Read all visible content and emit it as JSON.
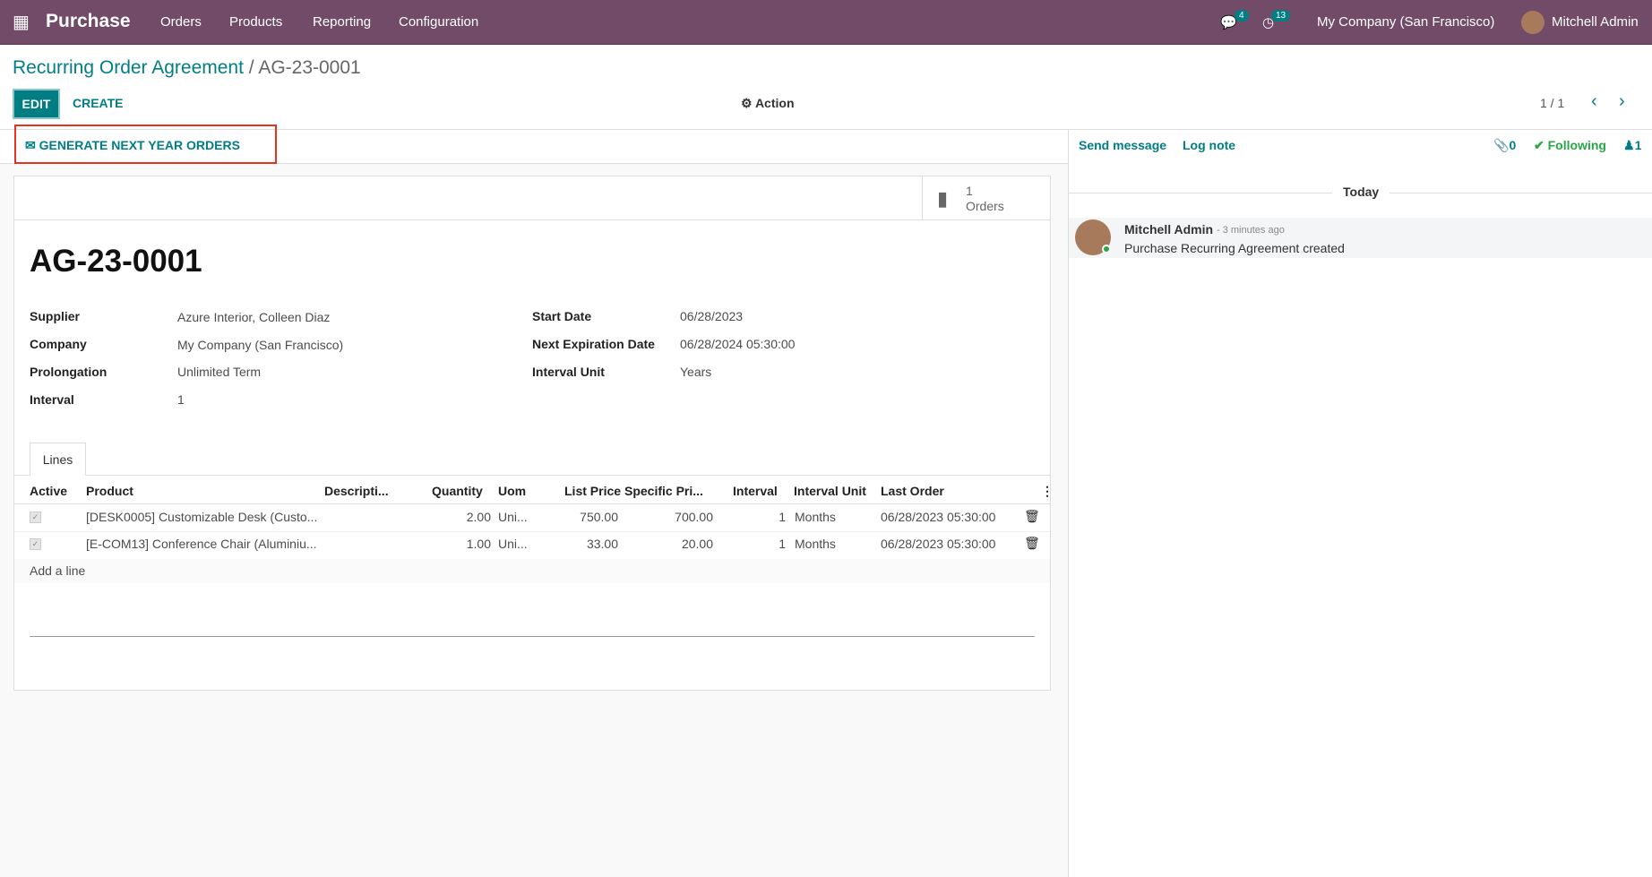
{
  "navbar": {
    "app": "Purchase",
    "menus": [
      "Orders",
      "Products",
      "Reporting",
      "Configuration"
    ],
    "messages_count": "4",
    "activities_count": "13",
    "company": "My Company (San Francisco)",
    "user": "Mitchell Admin",
    "color": "#714B67"
  },
  "breadcrumb": {
    "parent": "Recurring Order Agreement",
    "current": "AG-23-0001"
  },
  "toolbar": {
    "edit": "EDIT",
    "create": "CREATE",
    "action": "Action",
    "pager": "1 / 1"
  },
  "statusbar": {
    "generate": "GENERATE NEXT YEAR ORDERS"
  },
  "stat_button": {
    "count": "1",
    "label": "Orders"
  },
  "record": {
    "title": "AG-23-0001",
    "left": [
      {
        "label": "Supplier",
        "value": "Azure Interior, Colleen Diaz"
      },
      {
        "label": "Company",
        "value": "My Company (San Francisco)"
      },
      {
        "label": "Prolongation",
        "value": "Unlimited Term"
      },
      {
        "label": "Interval",
        "value": "1"
      }
    ],
    "right": [
      {
        "label": "Start Date",
        "value": "06/28/2023"
      },
      {
        "label": "Next Expiration Date",
        "value": "06/28/2024 05:30:00"
      },
      {
        "label": "Interval Unit",
        "value": "Years"
      }
    ]
  },
  "tabs": [
    "Lines"
  ],
  "table": {
    "headers": [
      "Active",
      "Product",
      "Descripti...",
      "Quantity",
      "Uom",
      "List Price",
      "Specific Pri...",
      "Interval",
      "Interval Unit",
      "Last Order"
    ],
    "rows": [
      {
        "active": true,
        "product": "[DESK0005] Customizable Desk (Custo...",
        "description": "",
        "quantity": "2.00",
        "uom": "Uni...",
        "list_price": "750.00",
        "specific_price": "700.00",
        "interval": "1",
        "interval_unit": "Months",
        "last_order": "06/28/2023 05:30:00"
      },
      {
        "active": true,
        "product": "[E-COM13] Conference Chair (Aluminiu...",
        "description": "",
        "quantity": "1.00",
        "uom": "Uni...",
        "list_price": "33.00",
        "specific_price": "20.00",
        "interval": "1",
        "interval_unit": "Months",
        "last_order": "06/28/2023 05:30:00"
      }
    ],
    "add_line": "Add a line"
  },
  "chatter": {
    "send_message": "Send message",
    "log_note": "Log note",
    "attachments": "0",
    "following": "Following",
    "followers": "1",
    "today": "Today",
    "messages": [
      {
        "author": "Mitchell Admin",
        "time": "- 3 minutes ago",
        "body": "Purchase Recurring Agreement created"
      }
    ]
  }
}
